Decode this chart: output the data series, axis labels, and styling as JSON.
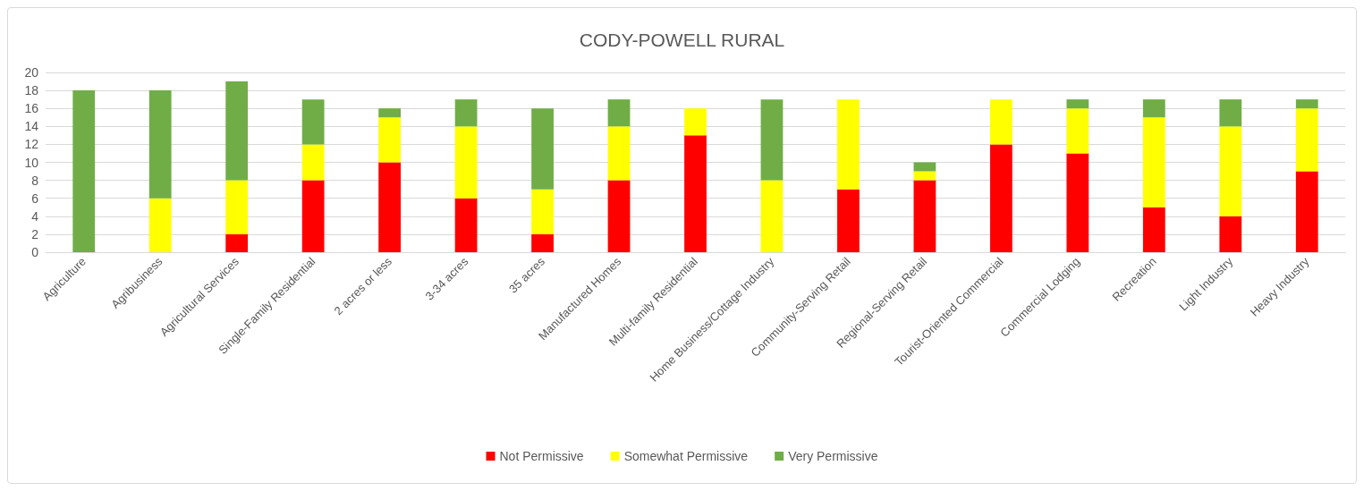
{
  "chart_data": {
    "type": "bar",
    "title": "CODY-POWELL RURAL",
    "stacked": true,
    "categories": [
      "Agriculture",
      "Agribusiness",
      "Agricultural Services",
      "Single-Family Residential",
      "2 acres or less",
      "3-34 acres",
      "35 acres",
      "Manufactured Homes",
      "Multi-family Residential",
      "Home Business/Cottage Industry",
      "Community-Serving Retail",
      "Regional-Serving Retail",
      "Tourist-Oriented Commercial",
      "Commercial Lodging",
      "Recreation",
      "Light Industry",
      "Heavy Industry"
    ],
    "series": [
      {
        "name": "Not Permissive",
        "color": "#ff0000",
        "values": [
          0,
          0,
          2,
          8,
          10,
          6,
          2,
          8,
          13,
          0,
          7,
          8,
          12,
          11,
          5,
          4,
          9
        ]
      },
      {
        "name": "Somewhat Permissive",
        "color": "#ffff00",
        "values": [
          0,
          6,
          6,
          4,
          5,
          8,
          5,
          6,
          3,
          8,
          10,
          1,
          5,
          5,
          10,
          10,
          7
        ]
      },
      {
        "name": "Very Permissive",
        "color": "#70ad47",
        "values": [
          18,
          12,
          11,
          5,
          1,
          3,
          9,
          3,
          0,
          9,
          0,
          1,
          0,
          1,
          2,
          3,
          1
        ]
      }
    ],
    "ylim": [
      0,
      20
    ],
    "yticks": [
      0,
      2,
      4,
      6,
      8,
      10,
      12,
      14,
      16,
      18,
      20
    ],
    "grid": "y",
    "legend": "bottom"
  }
}
